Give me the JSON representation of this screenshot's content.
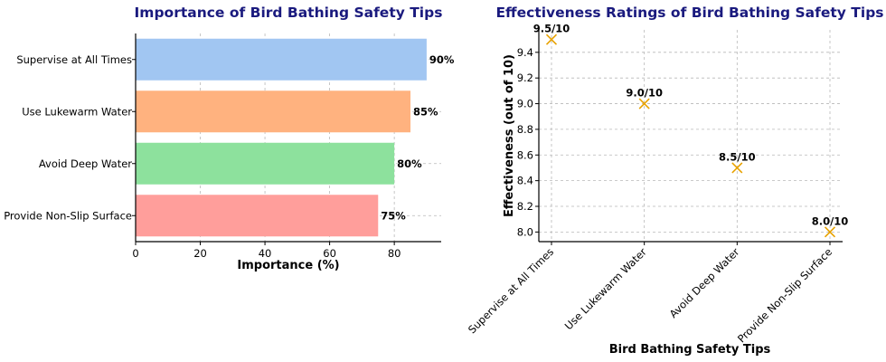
{
  "colors": {
    "title": "#1a1a7e",
    "marker": "#e8a200"
  },
  "chart_data": [
    {
      "type": "bar",
      "orientation": "horizontal",
      "title": "Importance of Bird Bathing Safety Tips",
      "xlabel": "Importance (%)",
      "ylabel": "",
      "categories": [
        "Supervise at All Times",
        "Use Lukewarm Water",
        "Avoid Deep Water",
        "Provide Non-Slip Surface"
      ],
      "values": [
        90,
        85,
        80,
        75
      ],
      "value_labels": [
        "90%",
        "85%",
        "80%",
        "75%"
      ],
      "bar_colors": [
        "#a1c6f2",
        "#ffb27f",
        "#8de19d",
        "#ff9e9b"
      ],
      "xlim": [
        0,
        94.5
      ],
      "xticks": [
        0,
        20,
        40,
        60,
        80
      ],
      "grid": true
    },
    {
      "type": "scatter",
      "title": "Effectiveness Ratings of Bird Bathing Safety Tips",
      "xlabel": "Bird Bathing Safety Tips",
      "ylabel": "Effectiveness (out of 10)",
      "categories": [
        "Supervise at All Times",
        "Use Lukewarm Water",
        "Avoid Deep Water",
        "Provide Non-Slip Surface"
      ],
      "values": [
        9.5,
        9.0,
        8.5,
        8.0
      ],
      "value_labels": [
        "9.5/10",
        "9.0/10",
        "8.5/10",
        "8.0/10"
      ],
      "marker": "x",
      "ylim": [
        7.925,
        9.575
      ],
      "yticks": [
        8.0,
        8.2,
        8.4,
        8.6,
        8.8,
        9.0,
        9.2,
        9.4
      ],
      "grid": true
    }
  ]
}
